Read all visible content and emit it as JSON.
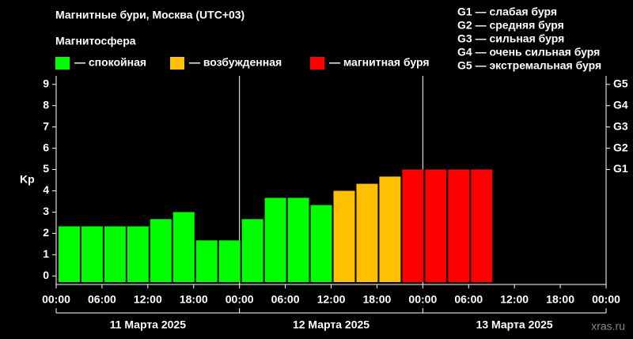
{
  "chart_data": {
    "type": "bar",
    "title": "Магнитные бури, Москва (UTC+03)",
    "subtitle": "Магнитосфера",
    "ylabel": "Kp",
    "storm_scale": [
      "G1 — слабая буря",
      "G2 — средняя буря",
      "G3 — сильная буря",
      "G4 — очень сильная буря",
      "G5 — экстремальная буря"
    ],
    "series": [
      {
        "name": "— спокойная",
        "color": "#00ff00",
        "values": [
          2.33,
          2.33,
          2.33,
          2.33,
          2.67,
          3.0,
          1.67,
          1.67,
          2.67,
          3.67,
          3.67,
          3.33,
          null,
          null,
          null,
          null,
          null,
          null,
          null,
          null,
          null,
          null,
          null,
          null
        ]
      },
      {
        "name": "— возбужденная",
        "color": "#ffc000",
        "values": [
          null,
          null,
          null,
          null,
          null,
          null,
          null,
          null,
          null,
          null,
          null,
          null,
          4.0,
          4.33,
          4.67,
          null,
          null,
          null,
          null,
          null,
          null,
          null,
          null,
          null
        ]
      },
      {
        "name": "— магнитная буря",
        "color": "#ff0000",
        "values": [
          null,
          null,
          null,
          null,
          null,
          null,
          null,
          null,
          null,
          null,
          null,
          null,
          null,
          null,
          null,
          5.0,
          5.0,
          5.0,
          5.0,
          null,
          null,
          null,
          null,
          null
        ]
      }
    ],
    "xticks": [
      "00:00",
      "06:00",
      "12:00",
      "18:00",
      "00:00",
      "06:00",
      "12:00",
      "18:00",
      "00:00",
      "06:00",
      "12:00",
      "18:00",
      "00:00"
    ],
    "days": [
      "11 Марта 2025",
      "12 Марта 2025",
      "13 Марта 2025"
    ],
    "ylim": [
      -0.4,
      9.4
    ],
    "yticks": [
      0,
      1,
      2,
      3,
      4,
      5,
      6,
      7,
      8,
      9
    ],
    "y2ticks": [
      {
        "value": 5,
        "label": "G1"
      },
      {
        "value": 6,
        "label": "G2"
      },
      {
        "value": 7,
        "label": "G3"
      },
      {
        "value": 8,
        "label": "G4"
      },
      {
        "value": 9,
        "label": "G5"
      }
    ],
    "watermark": "xras.ru"
  }
}
